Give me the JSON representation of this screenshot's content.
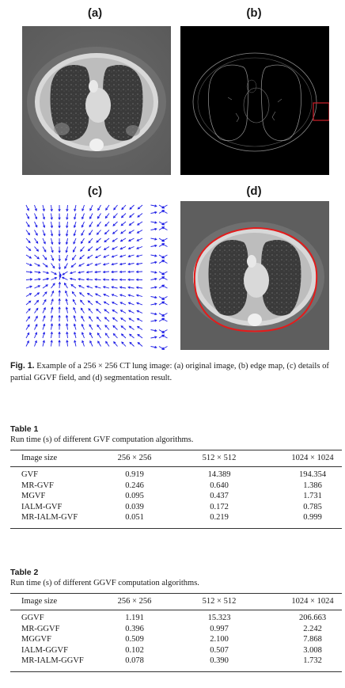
{
  "figure": {
    "panels": [
      {
        "label": "(a)"
      },
      {
        "label": "(b)"
      },
      {
        "label": "(c)"
      },
      {
        "label": "(d)"
      }
    ],
    "caption_label": "Fig. 1.",
    "caption_text": "Example of a 256 × 256 CT lung image: (a) original image, (b) edge map, (c) details of partial GGVF field, and (d) segmentation result.",
    "colors": {
      "field_arrows": "#1e1ee6",
      "contour": "#e31b1b",
      "highlight_box": "#d0202a"
    }
  },
  "table1": {
    "title": "Table 1",
    "subtitle": "Run time (s) of different GVF computation algorithms.",
    "headers": [
      "Image size",
      "256 × 256",
      "512 × 512",
      "1024 × 1024"
    ],
    "rows": [
      [
        "GVF",
        "0.919",
        "14.389",
        "194.354"
      ],
      [
        "MR-GVF",
        "0.246",
        "0.640",
        "1.386"
      ],
      [
        "MGVF",
        "0.095",
        "0.437",
        "1.731"
      ],
      [
        "IALM-GVF",
        "0.039",
        "0.172",
        "0.785"
      ],
      [
        "MR-IALM-GVF",
        "0.051",
        "0.219",
        "0.999"
      ]
    ]
  },
  "table2": {
    "title": "Table 2",
    "subtitle": "Run time (s) of different GGVF computation algorithms.",
    "headers": [
      "Image size",
      "256 × 256",
      "512 × 512",
      "1024 × 1024"
    ],
    "rows": [
      [
        "GGVF",
        "1.191",
        "15.323",
        "206.663"
      ],
      [
        "MR-GGVF",
        "0.396",
        "0.997",
        "2.242"
      ],
      [
        "MGGVF",
        "0.509",
        "2.100",
        "7.868"
      ],
      [
        "IALM-GGVF",
        "0.102",
        "0.507",
        "3.008"
      ],
      [
        "MR-IALM-GGVF",
        "0.078",
        "0.390",
        "1.732"
      ]
    ]
  }
}
